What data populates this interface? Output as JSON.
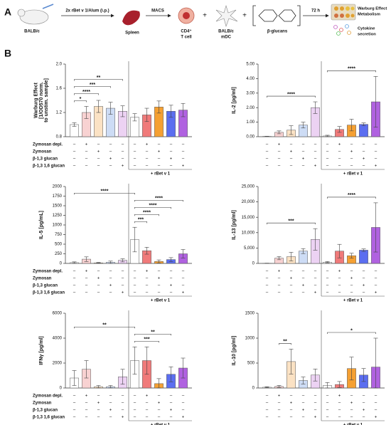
{
  "schematic": {
    "panel_a": "A",
    "panel_b": "B",
    "mouse": "BALB/c",
    "immunization": "2x rBet v 1/Alum (i.p.)",
    "spleen": "Spleen",
    "macs": "MACS",
    "tcell": [
      "CD4⁺",
      "T cell"
    ],
    "plus": "+",
    "mdc": [
      "BALB/c",
      "mDC"
    ],
    "glucans": "β-glucans",
    "time": "72 h",
    "warburg": [
      "Warburg Effect",
      "Metabolism"
    ],
    "cytokine": [
      "Cytokine",
      "secretion"
    ]
  },
  "conditions": {
    "labels": [
      "Zymosan depl.",
      "Zymosan",
      "β-1,3 glucan",
      "β-1,3 1,6 glucan"
    ],
    "signs": [
      [
        "–",
        "+",
        "–",
        "–",
        "–",
        "–",
        "+",
        "–",
        "–",
        "–"
      ],
      [
        "–",
        "–",
        "+",
        "–",
        "–",
        "–",
        "–",
        "+",
        "–",
        "–"
      ],
      [
        "–",
        "–",
        "–",
        "+",
        "–",
        "–",
        "–",
        "–",
        "+",
        "–"
      ],
      [
        "–",
        "–",
        "–",
        "–",
        "+",
        "–",
        "–",
        "–",
        "–",
        "+"
      ]
    ],
    "group_label": "+ rBet v 1"
  },
  "chart_data": [
    {
      "type": "bar",
      "ylabel": [
        "Warburg Effect",
        "[1/OD570 norm.",
        "to unstim. sample]"
      ],
      "ylim": [
        0.8,
        2.0
      ],
      "yticks": [
        0.8,
        1.2,
        1.6,
        {
          "value": 2.0,
          "label": "2.0"
        }
      ],
      "values": [
        1.0,
        1.2,
        1.3,
        1.27,
        1.22,
        1.12,
        1.16,
        1.29,
        1.22,
        1.24
      ],
      "errors": [
        0.03,
        0.1,
        0.1,
        0.1,
        0.09,
        0.06,
        0.11,
        0.1,
        0.1,
        0.11
      ],
      "colors": [
        "#ffffff",
        "#f8d2d2",
        "#fbe2c4",
        "#cddcf5",
        "#ecd2f3",
        "#ffffff",
        "#f07a7a",
        "#f5a032",
        "#5b6ef0",
        "#b062e0"
      ],
      "significance": [
        {
          "from": 0,
          "to": 1,
          "label": "*"
        },
        {
          "from": 0,
          "to": 2,
          "label": "****"
        },
        {
          "from": 0,
          "to": 3,
          "label": "***"
        },
        {
          "from": 0,
          "to": 4,
          "label": "**"
        }
      ]
    },
    {
      "type": "bar",
      "ylabel": [
        "IL-2 [pg/ml]"
      ],
      "ylim": [
        0,
        5
      ],
      "yticks": [
        {
          "value": 0,
          "label": "0.00"
        },
        {
          "value": 1,
          "label": "1.00"
        },
        {
          "value": 2,
          "label": "2.00"
        },
        {
          "value": 3,
          "label": "3.00"
        },
        {
          "value": 4,
          "label": "4.00"
        },
        {
          "value": 5,
          "label": "5.00"
        }
      ],
      "values": [
        0.02,
        0.3,
        0.45,
        0.8,
        2.0,
        0.05,
        0.5,
        0.8,
        0.85,
        2.4
      ],
      "errors": [
        0.01,
        0.1,
        0.3,
        0.2,
        0.4,
        0.05,
        0.2,
        0.4,
        0.1,
        1.75
      ],
      "colors": [
        "#ffffff",
        "#f8d2d2",
        "#fbe2c4",
        "#cddcf5",
        "#ecd2f3",
        "#ffffff",
        "#f07a7a",
        "#f5a032",
        "#5b6ef0",
        "#b062e0"
      ],
      "significance": [
        {
          "from": 0,
          "to": 4,
          "label": "****"
        },
        {
          "from": 5,
          "to": 9,
          "label": "****"
        }
      ]
    },
    {
      "type": "bar",
      "ylabel": [
        "IL-5 [pg/mL]"
      ],
      "ylim": [
        0,
        2000
      ],
      "yticks": [
        0,
        250,
        500,
        750,
        1000,
        1250,
        1500,
        1750,
        2000
      ],
      "values": [
        20,
        110,
        15,
        30,
        80,
        620,
        330,
        50,
        100,
        250
      ],
      "errors": [
        20,
        60,
        10,
        30,
        40,
        320,
        90,
        40,
        50,
        110
      ],
      "colors": [
        "#ffffff",
        "#f8d2d2",
        "#fbe2c4",
        "#cddcf5",
        "#ecd2f3",
        "#ffffff",
        "#f07a7a",
        "#f5a032",
        "#5b6ef0",
        "#b062e0"
      ],
      "significance": [
        {
          "from": 5,
          "to": 6,
          "label": "***"
        },
        {
          "from": 5,
          "to": 7,
          "label": "****"
        },
        {
          "from": 5,
          "to": 8,
          "label": "****"
        },
        {
          "from": 5,
          "to": 9,
          "label": "****"
        },
        {
          "from": 0,
          "to": 5,
          "label": "****"
        }
      ]
    },
    {
      "type": "bar",
      "ylabel": [
        "IL-13 [pg/ml]"
      ],
      "ylim": [
        0,
        25000
      ],
      "yticks": [
        0,
        {
          "value": 5000,
          "label": "5,000"
        },
        {
          "value": 10000,
          "label": "10,000"
        },
        {
          "value": 15000,
          "label": "15,000"
        },
        {
          "value": 20000,
          "label": "20,000"
        },
        {
          "value": 25000,
          "label": "25,000"
        }
      ],
      "values": [
        50,
        1700,
        2200,
        4000,
        7800,
        400,
        4000,
        2500,
        4300,
        11700
      ],
      "errors": [
        30,
        500,
        1400,
        800,
        3500,
        200,
        2200,
        800,
        400,
        8000
      ],
      "colors": [
        "#ffffff",
        "#f8d2d2",
        "#fbe2c4",
        "#cddcf5",
        "#ecd2f3",
        "#ffffff",
        "#f07a7a",
        "#f5a032",
        "#5b6ef0",
        "#b062e0"
      ],
      "significance": [
        {
          "from": 0,
          "to": 4,
          "label": "***"
        },
        {
          "from": 5,
          "to": 9,
          "label": "****"
        }
      ]
    },
    {
      "type": "bar",
      "ylabel": [
        "IFNγ [pg/ml]"
      ],
      "ylim": [
        0,
        6000
      ],
      "yticks": [
        0,
        2000,
        4000,
        6000
      ],
      "values": [
        800,
        1500,
        100,
        100,
        900,
        2200,
        2200,
        350,
        1100,
        1600
      ],
      "errors": [
        600,
        700,
        100,
        100,
        600,
        1100,
        1100,
        400,
        600,
        800
      ],
      "colors": [
        "#ffffff",
        "#f8d2d2",
        "#fbe2c4",
        "#cddcf5",
        "#ecd2f3",
        "#ffffff",
        "#f07a7a",
        "#f5a032",
        "#5b6ef0",
        "#b062e0"
      ],
      "significance": [
        {
          "from": 5,
          "to": 7,
          "label": "***"
        },
        {
          "from": 5,
          "to": 8,
          "label": "**"
        },
        {
          "from": 0,
          "to": 5,
          "label": "**"
        }
      ]
    },
    {
      "type": "bar",
      "ylabel": [
        "IL-10 [pg/ml]"
      ],
      "ylim": [
        0,
        1500
      ],
      "yticks": [
        0,
        500,
        1000,
        1500
      ],
      "values": [
        15,
        30,
        530,
        150,
        260,
        50,
        70,
        390,
        260,
        420
      ],
      "errors": [
        10,
        20,
        250,
        70,
        120,
        60,
        60,
        230,
        130,
        580
      ],
      "colors": [
        "#ffffff",
        "#f8d2d2",
        "#fbe2c4",
        "#cddcf5",
        "#ecd2f3",
        "#ffffff",
        "#f07a7a",
        "#f5a032",
        "#5b6ef0",
        "#b062e0"
      ],
      "significance": [
        {
          "from": 1,
          "to": 2,
          "label": "**"
        },
        {
          "from": 5,
          "to": 9,
          "label": "*"
        }
      ]
    }
  ]
}
